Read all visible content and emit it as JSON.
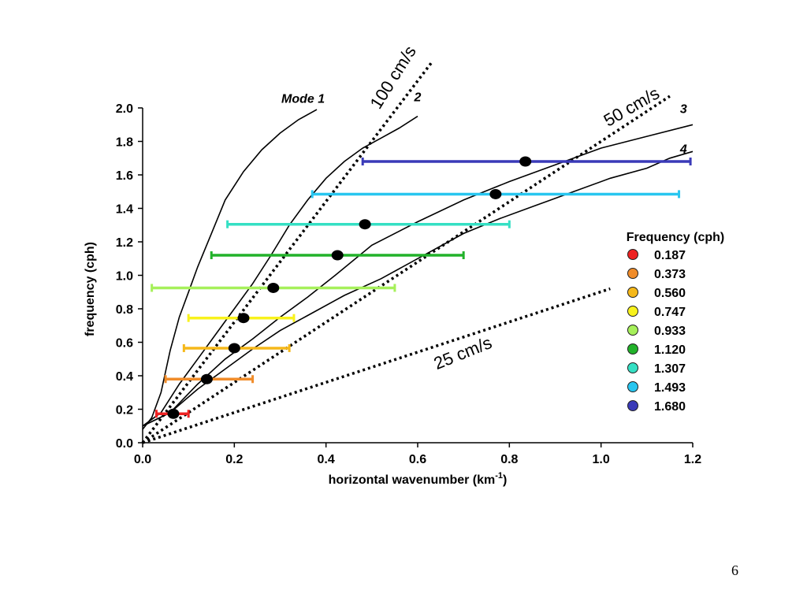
{
  "page_number": "6",
  "chart_data": {
    "type": "scatter",
    "xlabel": "horizontal wavenumber (km",
    "xlabel_sup": "-1",
    "xlabel_end": ")",
    "ylabel": "frequency (cph)",
    "xlim": [
      0,
      1.2
    ],
    "ylim": [
      0,
      2.0
    ],
    "x_ticks": [
      "0.0",
      "0.2",
      "0.4",
      "0.6",
      "0.8",
      "1.0",
      "1.2"
    ],
    "y_ticks": [
      "0.0",
      "0.2",
      "0.4",
      "0.6",
      "0.8",
      "1.0",
      "1.2",
      "1.4",
      "1.6",
      "1.8",
      "2.0"
    ],
    "grid": false,
    "legend_position": "right",
    "legend_title": "Frequency (cph)",
    "points": [
      {
        "label": "0.187",
        "freq": 0.173,
        "k": 0.067,
        "kmin": 0.03,
        "kmax": 0.1,
        "color": "#ee2222"
      },
      {
        "label": "0.373",
        "freq": 0.38,
        "k": 0.14,
        "kmin": 0.05,
        "kmax": 0.24,
        "color": "#f08c2a"
      },
      {
        "label": "0.560",
        "freq": 0.565,
        "k": 0.2,
        "kmin": 0.09,
        "kmax": 0.32,
        "color": "#f5b81a"
      },
      {
        "label": "0.747",
        "freq": 0.745,
        "k": 0.22,
        "kmin": 0.1,
        "kmax": 0.33,
        "color": "#f8f21c"
      },
      {
        "label": "0.933",
        "freq": 0.925,
        "k": 0.285,
        "kmin": 0.02,
        "kmax": 0.55,
        "color": "#a6f05a"
      },
      {
        "label": "1.120",
        "freq": 1.12,
        "k": 0.425,
        "kmin": 0.15,
        "kmax": 0.7,
        "color": "#22b22a"
      },
      {
        "label": "1.307",
        "freq": 1.305,
        "k": 0.485,
        "kmin": 0.185,
        "kmax": 0.8,
        "color": "#35e0c4"
      },
      {
        "label": "1.493",
        "freq": 1.485,
        "k": 0.77,
        "kmin": 0.37,
        "kmax": 1.17,
        "color": "#28c6f0"
      },
      {
        "label": "1.680",
        "freq": 1.68,
        "k": 0.835,
        "kmin": 0.48,
        "kmax": 1.195,
        "color": "#3a3ab8"
      }
    ],
    "mode_curves": [
      {
        "name": "Mode 1",
        "label_at": [
          0.35,
          2.03
        ],
        "points": [
          [
            0,
            0.08
          ],
          [
            0.02,
            0.15
          ],
          [
            0.04,
            0.3
          ],
          [
            0.06,
            0.55
          ],
          [
            0.08,
            0.75
          ],
          [
            0.1,
            0.9
          ],
          [
            0.12,
            1.05
          ],
          [
            0.15,
            1.25
          ],
          [
            0.18,
            1.45
          ],
          [
            0.22,
            1.62
          ],
          [
            0.26,
            1.75
          ],
          [
            0.3,
            1.85
          ],
          [
            0.34,
            1.93
          ],
          [
            0.38,
            1.99
          ]
        ]
      },
      {
        "name": "2",
        "label_at": [
          0.6,
          2.04
        ],
        "points": [
          [
            0,
            0.1
          ],
          [
            0.04,
            0.18
          ],
          [
            0.08,
            0.35
          ],
          [
            0.12,
            0.5
          ],
          [
            0.16,
            0.65
          ],
          [
            0.2,
            0.8
          ],
          [
            0.24,
            0.95
          ],
          [
            0.28,
            1.12
          ],
          [
            0.32,
            1.3
          ],
          [
            0.36,
            1.45
          ],
          [
            0.4,
            1.58
          ],
          [
            0.44,
            1.68
          ],
          [
            0.48,
            1.76
          ],
          [
            0.52,
            1.82
          ],
          [
            0.56,
            1.88
          ],
          [
            0.6,
            1.95
          ]
        ]
      },
      {
        "name": "3",
        "label_at": [
          1.18,
          1.97
        ],
        "points": [
          [
            0,
            0.1
          ],
          [
            0.06,
            0.18
          ],
          [
            0.12,
            0.35
          ],
          [
            0.18,
            0.5
          ],
          [
            0.24,
            0.62
          ],
          [
            0.3,
            0.75
          ],
          [
            0.36,
            0.87
          ],
          [
            0.42,
            1.0
          ],
          [
            0.5,
            1.18
          ],
          [
            0.6,
            1.32
          ],
          [
            0.7,
            1.45
          ],
          [
            0.8,
            1.56
          ],
          [
            0.9,
            1.66
          ],
          [
            1.0,
            1.76
          ],
          [
            1.1,
            1.83
          ],
          [
            1.2,
            1.9
          ]
        ]
      },
      {
        "name": "4",
        "label_at": [
          1.18,
          1.73
        ],
        "points": [
          [
            0,
            0.1
          ],
          [
            0.06,
            0.18
          ],
          [
            0.12,
            0.32
          ],
          [
            0.18,
            0.44
          ],
          [
            0.24,
            0.56
          ],
          [
            0.3,
            0.67
          ],
          [
            0.36,
            0.76
          ],
          [
            0.44,
            0.88
          ],
          [
            0.52,
            0.98
          ],
          [
            0.6,
            1.1
          ],
          [
            0.7,
            1.25
          ],
          [
            0.78,
            1.34
          ],
          [
            0.86,
            1.42
          ],
          [
            0.94,
            1.5
          ],
          [
            1.02,
            1.58
          ],
          [
            1.1,
            1.64
          ],
          [
            1.15,
            1.7
          ],
          [
            1.2,
            1.74
          ]
        ]
      }
    ],
    "speed_lines": [
      {
        "name": "100 cm/s",
        "end": [
          0.63,
          2.27
        ]
      },
      {
        "name": "50 cm/s",
        "end": [
          1.15,
          2.07
        ]
      },
      {
        "name": "25 cm/s",
        "end": [
          1.02,
          0.92
        ]
      }
    ]
  }
}
